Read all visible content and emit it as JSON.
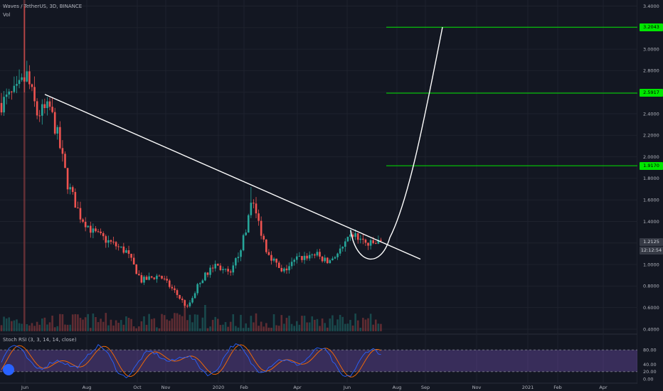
{
  "header": {
    "symbol": "Waves / TetherUS, 3D, BINANCE",
    "volume_label": "Vol"
  },
  "colors": {
    "background": "#131722",
    "grid": "#1e222d",
    "up": "#26a69a",
    "down": "#ef5350",
    "target": "#00e600",
    "trend": "#ffffff",
    "rsi_k": "#2962ff",
    "rsi_d": "#ff6d00",
    "rsi_band": "#7e57c2"
  },
  "chart_data": {
    "type": "candlestick",
    "x_ticks": [
      "Jun",
      "Aug",
      "Oct",
      "Nov",
      "2020",
      "Feb",
      "Apr",
      "Jun",
      "Aug",
      "Sep",
      "Nov",
      "2021",
      "Feb",
      "Apr"
    ],
    "y_ticks": [
      "3.4000",
      "3.2000",
      "3.0000",
      "2.8000",
      "2.6000",
      "2.4000",
      "2.2000",
      "2.0000",
      "1.8000",
      "1.6000",
      "1.4000",
      "1.2000",
      "1.0000",
      "0.8000",
      "0.6000",
      "0.4000"
    ],
    "ylim": [
      0.38,
      3.43
    ],
    "price_path": [
      {
        "t": 0,
        "p": 2.5
      },
      {
        "t": 6,
        "p": 2.6
      },
      {
        "t": 10,
        "p": 2.75
      },
      {
        "t": 14,
        "p": 2.4
      },
      {
        "t": 19,
        "p": 2.45
      },
      {
        "t": 22,
        "p": 2.2
      },
      {
        "t": 26,
        "p": 1.75
      },
      {
        "t": 31,
        "p": 1.45
      },
      {
        "t": 36,
        "p": 1.3
      },
      {
        "t": 43,
        "p": 1.2
      },
      {
        "t": 49,
        "p": 1.12
      },
      {
        "t": 55,
        "p": 0.85
      },
      {
        "t": 62,
        "p": 0.9
      },
      {
        "t": 68,
        "p": 0.75
      },
      {
        "t": 73,
        "p": 0.6
      },
      {
        "t": 78,
        "p": 0.85
      },
      {
        "t": 84,
        "p": 1.0
      },
      {
        "t": 90,
        "p": 0.9
      },
      {
        "t": 96,
        "p": 1.3
      },
      {
        "t": 98,
        "p": 1.62
      },
      {
        "t": 104,
        "p": 1.15
      },
      {
        "t": 110,
        "p": 0.92
      },
      {
        "t": 116,
        "p": 1.05
      },
      {
        "t": 123,
        "p": 1.1
      },
      {
        "t": 128,
        "p": 1.02
      },
      {
        "t": 134,
        "p": 1.15
      },
      {
        "t": 138,
        "p": 1.28
      },
      {
        "t": 144,
        "p": 1.18
      },
      {
        "t": 149,
        "p": 1.21
      }
    ],
    "last_price": "1.2125",
    "countdown": "12:12:54",
    "target_levels": [
      {
        "value": 3.2043,
        "label": "3.2043"
      },
      {
        "value": 2.5917,
        "label": "2.5917"
      },
      {
        "value": 1.917,
        "label": "1.9170"
      }
    ],
    "annotations": [
      "descending trendline",
      "cup and breakout projection curve"
    ],
    "indicator": {
      "name": "Stoch RSI (3, 3, 14, 14, close)",
      "y_ticks": [
        "80.00",
        "40.00",
        "20.00",
        "0.00"
      ],
      "ylim": [
        0,
        100
      ],
      "bands": [
        20,
        80
      ]
    }
  }
}
